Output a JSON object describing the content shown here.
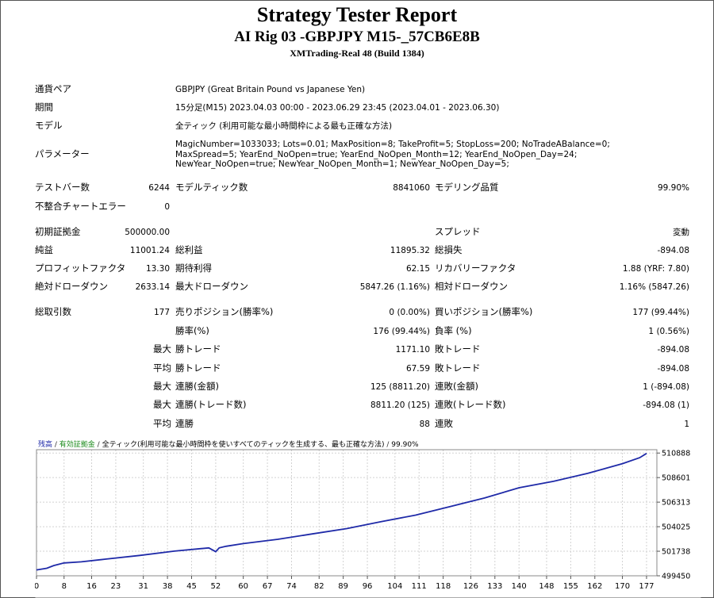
{
  "header": {
    "title": "Strategy Tester Report",
    "subtitle": "AI Rig 03 -GBPJPY M15-_57CB6E8B",
    "server": "XMTrading-Real 48 (Build 1384)"
  },
  "settings": {
    "symbol_label": "通貨ペア",
    "symbol_value": "GBPJPY (Great Britain Pound vs Japanese Yen)",
    "period_label": "期間",
    "period_value": "15分足(M15) 2023.04.03 00:00 - 2023.06.29 23:45 (2023.04.01 - 2023.06.30)",
    "model_label": "モデル",
    "model_value": "全ティック (利用可能な最小時間枠による最も正確な方法)",
    "params_label": "パラメーター",
    "params_value": "MagicNumber=1033033; Lots=0.01; MaxPosition=8; TakeProfit=5; StopLoss=200; NoTradeABalance=0; MaxSpread=5; YearEnd_NoOpen=true; YearEnd_NoOpen_Month=12; YearEnd_NoOpen_Day=24; NewYear_NoOpen=true; NewYear_NoOpen_Month=1; NewYear_NoOpen_Day=5;"
  },
  "stats": {
    "bars_label": "テストバー数",
    "bars_value": "6244",
    "ticks_label": "モデルティック数",
    "ticks_value": "8841060",
    "quality_label": "モデリング品質",
    "quality_value": "99.90%",
    "mismatch_label": "不整合チャートエラー",
    "mismatch_value": "0",
    "deposit_label": "初期証拠金",
    "deposit_value": "500000.00",
    "spread_label": "スプレッド",
    "spread_value": "変動",
    "net_label": "純益",
    "net_value": "11001.24",
    "gross_profit_label": "総利益",
    "gross_profit_value": "11895.32",
    "gross_loss_label": "総損失",
    "gross_loss_value": "-894.08",
    "pf_label": "プロフィットファクタ",
    "pf_value": "13.30",
    "expected_label": "期待利得",
    "expected_value": "62.15",
    "recovery_label": "リカバリーファクタ",
    "recovery_value": "1.88 (YRF: 7.80)",
    "abs_dd_label": "絶対ドローダウン",
    "abs_dd_value": "2633.14",
    "max_dd_label": "最大ドローダウン",
    "max_dd_value": "5847.26 (1.16%)",
    "rel_dd_label": "相対ドローダウン",
    "rel_dd_value": "1.16% (5847.26)",
    "total_label": "総取引数",
    "total_value": "177",
    "short_label": "売りポジション(勝率%)",
    "short_value": "0 (0.00%)",
    "long_label": "買いポジション(勝率%)",
    "long_value": "177 (99.44%)",
    "winrate_label": "勝率(%)",
    "winrate_value": "176 (99.44%)",
    "lossrate_label": "負率 (%)",
    "lossrate_value": "1 (0.56%)",
    "p_max": "最大",
    "p_avg": "平均",
    "largest_win_label": "勝トレード",
    "largest_win_value": "1171.10",
    "largest_loss_label": "敗トレード",
    "largest_loss_value": "-894.08",
    "avg_win_label": "勝トレード",
    "avg_win_value": "67.59",
    "avg_loss_label": "敗トレード",
    "avg_loss_value": "-894.08",
    "max_cons_win_amt_label": "連勝(金額)",
    "max_cons_win_amt_value": "125 (8811.20)",
    "max_cons_loss_amt_label": "連敗(金額)",
    "max_cons_loss_amt_value": "1 (-894.08)",
    "max_cons_win_cnt_label": "連勝(トレード数)",
    "max_cons_win_cnt_value": "8811.20 (125)",
    "max_cons_loss_cnt_label": "連敗(トレード数)",
    "max_cons_loss_cnt_value": "-894.08 (1)",
    "avg_cons_win_label": "連勝",
    "avg_cons_win_value": "88",
    "avg_cons_loss_label": "連敗",
    "avg_cons_loss_value": "1"
  },
  "chart_legend": {
    "balance": "残高",
    "sep1": " / ",
    "equity": "有効証拠金",
    "sep2": " / ",
    "model": "全ティック(利用可能な最小時間枠を使いすべてのティックを生成する、最も正確な方法)",
    "sep3": " / ",
    "quality": "99.90%"
  },
  "chart_data": {
    "type": "line",
    "series": [
      {
        "name": "残高",
        "x": [
          0,
          3,
          5,
          8,
          13,
          20,
          30,
          40,
          50,
          52,
          53,
          55,
          60,
          70,
          80,
          90,
          100,
          110,
          120,
          130,
          140,
          150,
          160,
          170,
          175,
          177
        ],
        "values": [
          500000,
          500150,
          500400,
          500650,
          500750,
          501000,
          501350,
          501750,
          502050,
          501700,
          502050,
          502200,
          502450,
          502850,
          503350,
          503850,
          504500,
          505100,
          505900,
          506700,
          507650,
          508250,
          509000,
          509900,
          510450,
          510850
        ]
      }
    ],
    "ylim": [
      499450,
      511200
    ],
    "xlim": [
      0,
      180
    ],
    "y_ticks": [
      "510888",
      "508601",
      "506313",
      "504025",
      "501738",
      "499450"
    ],
    "x_ticks": [
      "0",
      "8",
      "16",
      "23",
      "31",
      "38",
      "45",
      "52",
      "60",
      "67",
      "74",
      "82",
      "89",
      "96",
      "104",
      "111",
      "118",
      "126",
      "133",
      "140",
      "148",
      "155",
      "162",
      "170",
      "177"
    ],
    "grid": true,
    "colors": {
      "line": "#1f2aa8",
      "grid": "#d2d2d2",
      "border": "#888888"
    }
  }
}
